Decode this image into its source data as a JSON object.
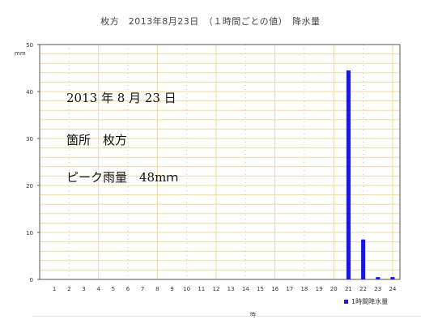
{
  "chart_data": {
    "type": "bar",
    "title": "枚方　2013年8月23日　（１時間ごとの値）　降水量",
    "ylabel": "mm",
    "xlabel": "時",
    "ylim": [
      0,
      50
    ],
    "yticks": [
      "0",
      "10",
      "20",
      "30",
      "40",
      "50"
    ],
    "categories": [
      "1",
      "2",
      "3",
      "4",
      "5",
      "6",
      "7",
      "8",
      "9",
      "10",
      "11",
      "12",
      "13",
      "14",
      "15",
      "16",
      "17",
      "18",
      "19",
      "20",
      "21",
      "22",
      "23",
      "24"
    ],
    "series": [
      {
        "name": "1時間降水量",
        "values": [
          0,
          0,
          0,
          0,
          0,
          0,
          0,
          0,
          0,
          0,
          0,
          0,
          0,
          0,
          0,
          0,
          0,
          0,
          0,
          0,
          44.5,
          8.5,
          0.5,
          0.5
        ]
      }
    ],
    "legend": "bottom-right",
    "grid": true
  },
  "annotation": {
    "date": "2013 年 8 月 23 日",
    "place": "箇所　枚方",
    "peak": "ピーク雨量　48mｍ"
  },
  "colors": {
    "bar": "#1a1ad8",
    "grid": "#f0d9a0",
    "grid_dotted": "#c8c8c8",
    "axis": "#555555"
  }
}
